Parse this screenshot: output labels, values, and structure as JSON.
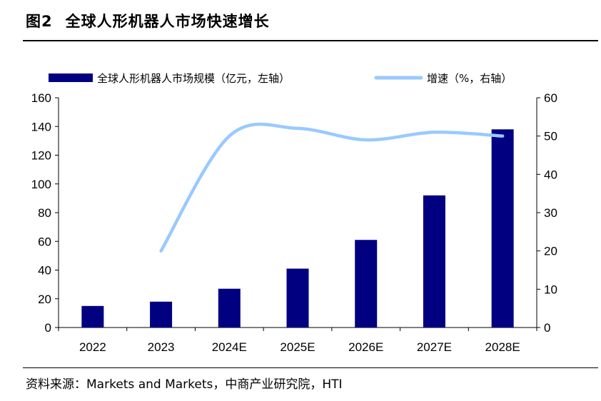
{
  "figure": {
    "title_num": "图2",
    "title_text": "全球人形机器人市场快速增长",
    "source": "资料来源：Markets and Markets，中商产业研究院，HTI"
  },
  "colors": {
    "bar": "#000080",
    "line": "#99c9ff",
    "axis": "#000000"
  },
  "chart_data": {
    "type": "bar",
    "categories": [
      "2022",
      "2023",
      "2024E",
      "2025E",
      "2026E",
      "2027E",
      "2028E"
    ],
    "series": [
      {
        "name": "全球人形机器人市场规模（亿元，左轴）",
        "type": "bar",
        "axis": "left",
        "values": [
          15,
          18,
          27,
          41,
          61,
          92,
          138
        ]
      },
      {
        "name": "增速（%，右轴）",
        "type": "line",
        "axis": "right",
        "smooth": true,
        "values": [
          null,
          20,
          50,
          52,
          49,
          51,
          50
        ]
      }
    ],
    "ylim_left": [
      0,
      160
    ],
    "yticks_left": [
      0,
      20,
      40,
      60,
      80,
      100,
      120,
      140,
      160
    ],
    "ylim_right": [
      0,
      60
    ],
    "yticks_right": [
      0,
      10,
      20,
      30,
      40,
      50,
      60
    ],
    "legend": "top",
    "grid": false
  }
}
